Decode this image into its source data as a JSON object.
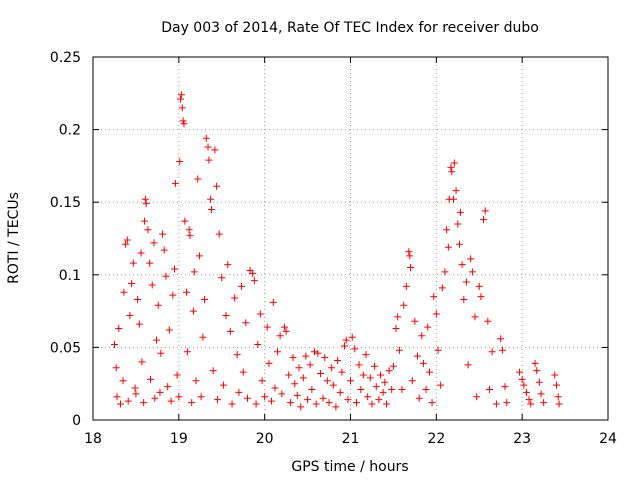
{
  "chart_data": {
    "type": "scatter",
    "title": "Day 003 of 2014, Rate Of TEC Index for receiver dubo",
    "xlabel": "GPS time / hours",
    "ylabel": "ROTI / TECUs",
    "xlim": [
      18,
      24
    ],
    "ylim": [
      0,
      0.25
    ],
    "xticks": [
      "18",
      "19",
      "20",
      "21",
      "22",
      "23",
      "24"
    ],
    "yticks": [
      "0",
      "0.05",
      "0.1",
      "0.15",
      "0.2",
      "0.25"
    ],
    "grid": true,
    "marker": "plus",
    "color": "#ff0000",
    "series": [
      {
        "name": "ROTI",
        "points": [
          [
            18.25,
            0.052
          ],
          [
            18.27,
            0.036
          ],
          [
            18.28,
            0.016
          ],
          [
            18.3,
            0.063
          ],
          [
            18.32,
            0.011
          ],
          [
            18.35,
            0.027
          ],
          [
            18.36,
            0.088
          ],
          [
            18.38,
            0.121
          ],
          [
            18.4,
            0.124
          ],
          [
            18.41,
            0.013
          ],
          [
            18.43,
            0.072
          ],
          [
            18.45,
            0.094
          ],
          [
            18.47,
            0.108
          ],
          [
            18.49,
            0.022
          ],
          [
            18.5,
            0.018
          ],
          [
            18.52,
            0.083
          ],
          [
            18.54,
            0.066
          ],
          [
            18.56,
            0.115
          ],
          [
            18.57,
            0.04
          ],
          [
            18.59,
            0.012
          ],
          [
            18.6,
            0.137
          ],
          [
            18.61,
            0.152
          ],
          [
            18.62,
            0.149
          ],
          [
            18.64,
            0.131
          ],
          [
            18.66,
            0.108
          ],
          [
            18.67,
            0.028
          ],
          [
            18.69,
            0.093
          ],
          [
            18.71,
            0.122
          ],
          [
            18.72,
            0.015
          ],
          [
            18.74,
            0.055
          ],
          [
            18.76,
            0.079
          ],
          [
            18.78,
            0.019
          ],
          [
            18.79,
            0.046
          ],
          [
            18.81,
            0.128
          ],
          [
            18.83,
            0.117
          ],
          [
            18.85,
            0.099
          ],
          [
            18.87,
            0.023
          ],
          [
            18.89,
            0.062
          ],
          [
            18.91,
            0.013
          ],
          [
            18.93,
            0.086
          ],
          [
            18.95,
            0.104
          ],
          [
            18.96,
            0.163
          ],
          [
            18.98,
            0.031
          ],
          [
            19.0,
            0.016
          ],
          [
            19.01,
            0.178
          ],
          [
            19.02,
            0.221
          ],
          [
            19.03,
            0.224
          ],
          [
            19.04,
            0.215
          ],
          [
            19.05,
            0.206
          ],
          [
            19.06,
            0.204
          ],
          [
            19.07,
            0.137
          ],
          [
            19.09,
            0.088
          ],
          [
            19.1,
            0.047
          ],
          [
            19.12,
            0.131
          ],
          [
            19.13,
            0.127
          ],
          [
            19.15,
            0.012
          ],
          [
            19.17,
            0.075
          ],
          [
            19.18,
            0.102
          ],
          [
            19.2,
            0.027
          ],
          [
            19.22,
            0.166
          ],
          [
            19.24,
            0.113
          ],
          [
            19.26,
            0.016
          ],
          [
            19.28,
            0.057
          ],
          [
            19.3,
            0.083
          ],
          [
            19.32,
            0.194
          ],
          [
            19.34,
            0.188
          ],
          [
            19.35,
            0.179
          ],
          [
            19.37,
            0.152
          ],
          [
            19.38,
            0.145
          ],
          [
            19.4,
            0.034
          ],
          [
            19.42,
            0.186
          ],
          [
            19.44,
            0.161
          ],
          [
            19.45,
            0.014
          ],
          [
            19.47,
            0.128
          ],
          [
            19.5,
            0.098
          ],
          [
            19.52,
            0.024
          ],
          [
            19.55,
            0.072
          ],
          [
            19.57,
            0.107
          ],
          [
            19.6,
            0.061
          ],
          [
            19.62,
            0.011
          ],
          [
            19.65,
            0.084
          ],
          [
            19.68,
            0.045
          ],
          [
            19.7,
            0.019
          ],
          [
            19.73,
            0.092
          ],
          [
            19.75,
            0.033
          ],
          [
            19.78,
            0.067
          ],
          [
            19.8,
            0.015
          ],
          [
            19.83,
            0.103
          ],
          [
            19.86,
            0.101
          ],
          [
            19.88,
            0.096
          ],
          [
            19.9,
            0.011
          ],
          [
            19.92,
            0.052
          ],
          [
            19.95,
            0.073
          ],
          [
            19.97,
            0.027
          ],
          [
            20.0,
            0.016
          ],
          [
            20.03,
            0.064
          ],
          [
            20.05,
            0.039
          ],
          [
            20.08,
            0.013
          ],
          [
            20.1,
            0.081
          ],
          [
            20.12,
            0.022
          ],
          [
            20.15,
            0.047
          ],
          [
            20.18,
            0.058
          ],
          [
            20.2,
            0.018
          ],
          [
            20.23,
            0.064
          ],
          [
            20.25,
            0.061
          ],
          [
            20.28,
            0.031
          ],
          [
            20.3,
            0.012
          ],
          [
            20.33,
            0.043
          ],
          [
            20.35,
            0.025
          ],
          [
            20.38,
            0.017
          ],
          [
            20.4,
            0.036
          ],
          [
            20.42,
            0.009
          ],
          [
            20.45,
            0.029
          ],
          [
            20.48,
            0.044
          ],
          [
            20.5,
            0.014
          ],
          [
            20.53,
            0.038
          ],
          [
            20.55,
            0.021
          ],
          [
            20.58,
            0.047
          ],
          [
            20.6,
            0.011
          ],
          [
            20.62,
            0.046
          ],
          [
            20.65,
            0.032
          ],
          [
            20.68,
            0.015
          ],
          [
            20.7,
            0.043
          ],
          [
            20.73,
            0.027
          ],
          [
            20.75,
            0.012
          ],
          [
            20.78,
            0.036
          ],
          [
            20.8,
            0.024
          ],
          [
            20.83,
            0.009
          ],
          [
            20.85,
            0.041
          ],
          [
            20.88,
            0.019
          ],
          [
            20.9,
            0.033
          ],
          [
            20.93,
            0.051
          ],
          [
            20.95,
            0.055
          ],
          [
            20.97,
            0.014
          ],
          [
            21.0,
            0.027
          ],
          [
            21.02,
            0.057
          ],
          [
            21.05,
            0.049
          ],
          [
            21.07,
            0.012
          ],
          [
            21.1,
            0.038
          ],
          [
            21.12,
            0.021
          ],
          [
            21.15,
            0.031
          ],
          [
            21.18,
            0.045
          ],
          [
            21.2,
            0.016
          ],
          [
            21.23,
            0.029
          ],
          [
            21.25,
            0.011
          ],
          [
            21.28,
            0.037
          ],
          [
            21.3,
            0.023
          ],
          [
            21.33,
            0.014
          ],
          [
            21.35,
            0.031
          ],
          [
            21.38,
            0.019
          ],
          [
            21.4,
            0.026
          ],
          [
            21.42,
            0.011
          ],
          [
            21.45,
            0.034
          ],
          [
            21.48,
            0.021
          ],
          [
            21.5,
            0.037
          ],
          [
            21.53,
            0.063
          ],
          [
            21.55,
            0.071
          ],
          [
            21.57,
            0.048
          ],
          [
            21.6,
            0.021
          ],
          [
            21.62,
            0.079
          ],
          [
            21.65,
            0.092
          ],
          [
            21.68,
            0.116
          ],
          [
            21.69,
            0.113
          ],
          [
            21.7,
            0.105
          ],
          [
            21.72,
            0.027
          ],
          [
            21.75,
            0.068
          ],
          [
            21.78,
            0.044
          ],
          [
            21.8,
            0.015
          ],
          [
            21.83,
            0.058
          ],
          [
            21.85,
            0.039
          ],
          [
            21.88,
            0.021
          ],
          [
            21.9,
            0.064
          ],
          [
            21.92,
            0.033
          ],
          [
            21.95,
            0.012
          ],
          [
            21.97,
            0.085
          ],
          [
            22.0,
            0.073
          ],
          [
            22.02,
            0.048
          ],
          [
            22.05,
            0.024
          ],
          [
            22.07,
            0.091
          ],
          [
            22.1,
            0.102
          ],
          [
            22.12,
            0.131
          ],
          [
            22.14,
            0.119
          ],
          [
            22.15,
            0.152
          ],
          [
            22.17,
            0.174
          ],
          [
            22.18,
            0.171
          ],
          [
            22.2,
            0.152
          ],
          [
            22.21,
            0.177
          ],
          [
            22.23,
            0.158
          ],
          [
            22.25,
            0.135
          ],
          [
            22.27,
            0.121
          ],
          [
            22.28,
            0.143
          ],
          [
            22.3,
            0.107
          ],
          [
            22.32,
            0.083
          ],
          [
            22.35,
            0.095
          ],
          [
            22.37,
            0.038
          ],
          [
            22.4,
            0.111
          ],
          [
            22.42,
            0.102
          ],
          [
            22.45,
            0.071
          ],
          [
            22.47,
            0.016
          ],
          [
            22.5,
            0.092
          ],
          [
            22.52,
            0.085
          ],
          [
            22.55,
            0.138
          ],
          [
            22.57,
            0.144
          ],
          [
            22.6,
            0.068
          ],
          [
            22.62,
            0.021
          ],
          [
            22.65,
            0.047
          ],
          [
            22.7,
            0.011
          ],
          [
            22.75,
            0.056
          ],
          [
            22.77,
            0.048
          ],
          [
            22.8,
            0.023
          ],
          [
            22.82,
            0.012
          ],
          [
            22.97,
            0.033
          ],
          [
            23.0,
            0.028
          ],
          [
            23.02,
            0.024
          ],
          [
            23.05,
            0.019
          ],
          [
            23.08,
            0.014
          ],
          [
            23.1,
            0.011
          ],
          [
            23.15,
            0.039
          ],
          [
            23.17,
            0.034
          ],
          [
            23.2,
            0.026
          ],
          [
            23.22,
            0.018
          ],
          [
            23.25,
            0.012
          ],
          [
            23.38,
            0.031
          ],
          [
            23.4,
            0.024
          ],
          [
            23.42,
            0.016
          ],
          [
            23.43,
            0.011
          ]
        ]
      }
    ]
  }
}
